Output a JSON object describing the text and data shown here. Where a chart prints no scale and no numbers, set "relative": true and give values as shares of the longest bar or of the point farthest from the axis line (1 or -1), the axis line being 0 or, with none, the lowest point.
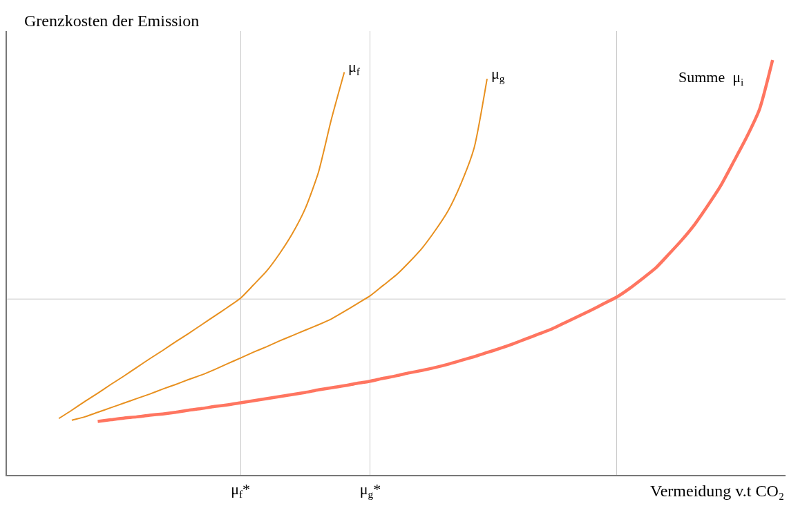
{
  "chart_data": {
    "type": "line",
    "relative": true,
    "ylabel": "Grenzkosten der Emission",
    "xlabel": "Vermeidung v.t CO₂",
    "categories": [
      null,
      null,
      null,
      null,
      null,
      null,
      null,
      null,
      null,
      null,
      null,
      null,
      null,
      null,
      null,
      null,
      null,
      null,
      "μ$_{f}$*",
      null,
      null,
      null,
      null,
      null,
      null,
      null,
      null,
      null,
      "μ$_{g}$*",
      null,
      null,
      null,
      null,
      null,
      null,
      null,
      null,
      null,
      null,
      null,
      null,
      null,
      null,
      null,
      null,
      null,
      null,
      null,
      null,
      null,
      null,
      null,
      null,
      null,
      null,
      null,
      null,
      null,
      null,
      null,
      null
    ],
    "series": [
      {
        "name": "μ$_{f}$",
        "color": "#e8901f",
        "values": [
          null,
          null,
          null,
          null,
          0.136,
          0.156,
          0.177,
          0.197,
          0.218,
          0.238,
          0.259,
          0.28,
          0.3,
          0.321,
          0.341,
          0.362,
          0.383,
          0.404,
          0.426,
          0.458,
          0.491,
          0.533,
          0.582,
          0.643,
          0.729,
          0.857,
          0.971,
          null,
          null,
          null,
          null,
          null,
          null,
          null,
          null,
          null,
          null,
          null,
          null,
          null,
          null,
          null,
          null,
          null,
          null,
          null,
          null,
          null,
          null,
          null,
          null,
          null,
          null,
          null,
          null,
          null,
          null,
          null,
          null,
          null,
          null
        ]
      },
      {
        "name": "μ$_{g}$",
        "color": "#e8901f",
        "values": [
          null,
          null,
          null,
          null,
          null,
          0.132,
          0.14,
          0.151,
          0.162,
          0.173,
          0.184,
          0.195,
          0.207,
          0.218,
          0.23,
          0.241,
          0.254,
          0.268,
          0.282,
          0.296,
          0.309,
          0.323,
          0.336,
          0.349,
          0.362,
          0.376,
          0.394,
          0.413,
          0.432,
          0.457,
          0.482,
          0.513,
          0.547,
          0.589,
          0.637,
          0.703,
          0.788,
          0.955,
          null,
          null,
          null,
          null,
          null,
          null,
          null,
          null,
          null,
          null,
          null,
          null,
          null,
          null,
          null,
          null,
          null,
          null,
          null,
          null,
          null,
          null,
          null
        ]
      },
      {
        "name": "Summe  μ$_{i}$",
        "color": "#ff7560",
        "values": [
          null,
          null,
          null,
          null,
          null,
          null,
          null,
          0.129,
          0.133,
          0.137,
          0.14,
          0.144,
          0.147,
          0.151,
          0.156,
          0.16,
          0.165,
          0.169,
          0.174,
          0.179,
          0.184,
          0.189,
          0.194,
          0.199,
          0.205,
          0.21,
          0.215,
          0.221,
          0.226,
          0.233,
          0.239,
          0.246,
          0.252,
          0.259,
          0.267,
          0.276,
          0.285,
          0.295,
          0.305,
          0.316,
          0.328,
          0.34,
          0.352,
          0.367,
          0.382,
          0.397,
          0.413,
          0.429,
          0.45,
          0.474,
          0.499,
          0.532,
          0.566,
          0.604,
          0.649,
          0.697,
          0.755,
          0.814,
          0.882,
          1.0,
          null
        ]
      }
    ],
    "ref_lines": [
      {
        "axis": "y",
        "value": 0.424,
        "color": "#c8c8c8"
      }
    ],
    "legend": false,
    "grid": "x",
    "marker": "none",
    "line_style": "solid"
  }
}
